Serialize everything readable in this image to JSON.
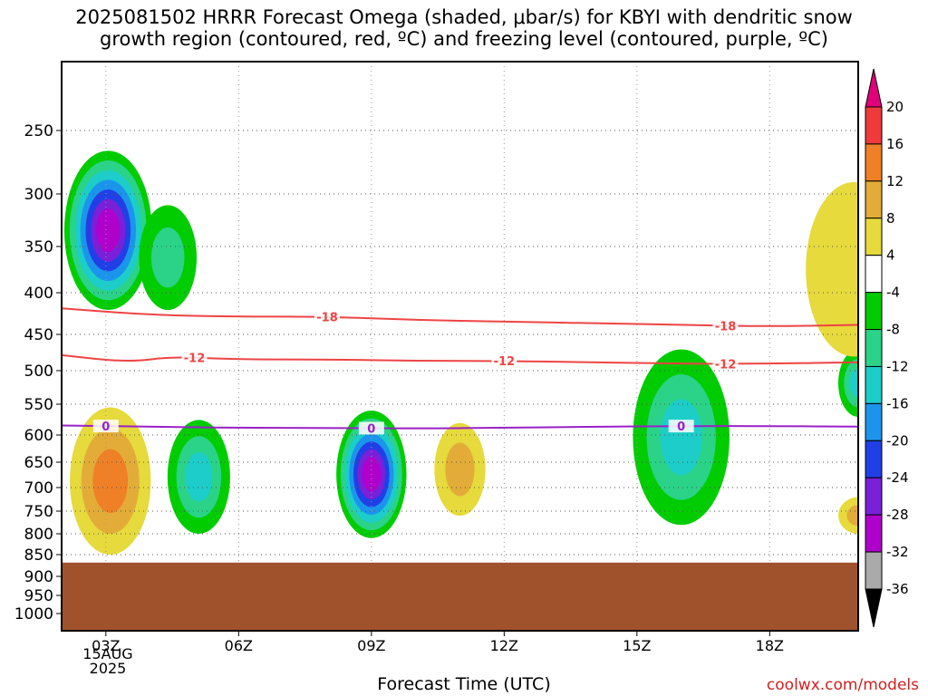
{
  "title": {
    "line1": "2025081502 HRRR Forecast Omega (shaded, μbar/s) for KBYI with dendritic snow",
    "line2": "growth region (contoured, red, ºC) and freezing level (contoured, purple, ºC)"
  },
  "xlabel": "Forecast Time (UTC)",
  "credit": "coolwx.com/models",
  "date_label": {
    "day": "15AUG",
    "year": "2025"
  },
  "chart_data": {
    "type": "heatmap",
    "title": "2025081502 HRRR Forecast Omega (shaded, μbar/s) for KBYI with dendritic snow growth region (contoured, red, ºC) and freezing level (contoured, purple, ºC)",
    "xlabel": "Forecast Time (UTC)",
    "ylabel": "",
    "x_ticks": [
      "03Z",
      "06Z",
      "09Z",
      "12Z",
      "15Z",
      "18Z"
    ],
    "x_tick_hours": [
      3,
      6,
      9,
      12,
      15,
      18
    ],
    "xlim": [
      2,
      20
    ],
    "y_ticks": [
      250,
      300,
      350,
      400,
      450,
      500,
      550,
      600,
      650,
      700,
      750,
      800,
      850,
      900,
      950,
      1000
    ],
    "ylim": [
      200,
      1050
    ],
    "y_scale": "log-pressure",
    "grid": true,
    "colorbar": {
      "labels": [
        "20",
        "16",
        "12",
        "8",
        "4",
        "-4",
        "-8",
        "-12",
        "-16",
        "-20",
        "-24",
        "-28",
        "-32",
        "-36"
      ],
      "bins": [
        {
          "lo": 20,
          "hi": null,
          "color": "#e0007a"
        },
        {
          "lo": 16,
          "hi": 20,
          "color": "#ee3a3a"
        },
        {
          "lo": 12,
          "hi": 16,
          "color": "#ef8026"
        },
        {
          "lo": 8,
          "hi": 12,
          "color": "#e3ac38"
        },
        {
          "lo": 4,
          "hi": 8,
          "color": "#e6da3c"
        },
        {
          "lo": -4,
          "hi": 4,
          "color": "#ffffff"
        },
        {
          "lo": -8,
          "hi": -4,
          "color": "#00cc00"
        },
        {
          "lo": -12,
          "hi": -8,
          "color": "#2ad388"
        },
        {
          "lo": -16,
          "hi": -12,
          "color": "#1ccdc9"
        },
        {
          "lo": -20,
          "hi": -16,
          "color": "#1b95ec"
        },
        {
          "lo": -24,
          "hi": -20,
          "color": "#2040e6"
        },
        {
          "lo": -28,
          "hi": -24,
          "color": "#7a20d8"
        },
        {
          "lo": -32,
          "hi": -28,
          "color": "#b000cc"
        },
        {
          "lo": -36,
          "hi": -32,
          "color": "#aaaaaa"
        },
        {
          "lo": null,
          "hi": -36,
          "color": "#000000"
        }
      ]
    },
    "omega_features": [
      {
        "hour": 3.05,
        "p_levels": [
          265,
          420
        ],
        "min_value": -30
      },
      {
        "hour": 4.4,
        "p_levels": [
          310,
          420
        ],
        "min_value": -12
      },
      {
        "hour": 3.1,
        "p_levels": [
          555,
          850
        ],
        "max_value": 14
      },
      {
        "hour": 9.0,
        "p_levels": [
          560,
          810
        ],
        "min_value": -30
      },
      {
        "hour": 11.0,
        "p_levels": [
          580,
          760
        ],
        "max_value": 12
      },
      {
        "hour": 5.1,
        "p_levels": [
          575,
          800
        ],
        "min_value": -16
      },
      {
        "hour": 16.0,
        "p_levels": [
          470,
          780
        ],
        "min_value": -14
      },
      {
        "hour": 20.0,
        "p_levels": [
          470,
          570
        ],
        "min_value": -14
      },
      {
        "hour": 20.0,
        "p_levels": [
          720,
          800
        ],
        "max_value": 10
      },
      {
        "hour": 19.9,
        "p_levels": [
          290,
          480
        ],
        "max_value": 6
      }
    ],
    "temperature_contours": [
      {
        "value": -18,
        "label": "-18",
        "color": "#ee4444",
        "points": [
          [
            2.0,
            418
          ],
          [
            4.0,
            426
          ],
          [
            6.0,
            428
          ],
          [
            8.0,
            428
          ],
          [
            10.0,
            432
          ],
          [
            12.0,
            434
          ],
          [
            14.0,
            436
          ],
          [
            16.0,
            438
          ],
          [
            18.0,
            440
          ],
          [
            20.0,
            438
          ]
        ]
      },
      {
        "value": -12,
        "label": "-12",
        "color": "#ee4444",
        "points": [
          [
            2.0,
            478
          ],
          [
            3.5,
            488
          ],
          [
            4.5,
            480
          ],
          [
            6.0,
            484
          ],
          [
            8.0,
            484
          ],
          [
            10.0,
            486
          ],
          [
            12.0,
            486
          ],
          [
            14.0,
            488
          ],
          [
            16.0,
            490
          ],
          [
            18.0,
            490
          ],
          [
            20.0,
            488
          ]
        ]
      },
      {
        "value": 0,
        "label": "0",
        "color": "#9b20c8",
        "points": [
          [
            2.0,
            584
          ],
          [
            4.0,
            586
          ],
          [
            6.0,
            588
          ],
          [
            8.0,
            588
          ],
          [
            10.0,
            589
          ],
          [
            12.0,
            588
          ],
          [
            14.0,
            586
          ],
          [
            16.0,
            585
          ],
          [
            18.0,
            585
          ],
          [
            20.0,
            586
          ]
        ]
      }
    ],
    "terrain_top_hpa": 868
  }
}
